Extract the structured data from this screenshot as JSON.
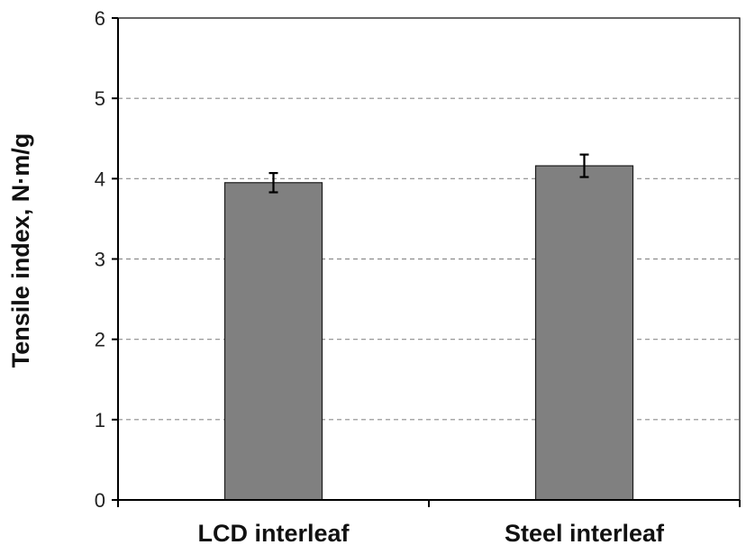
{
  "chart_data": {
    "type": "bar",
    "title": "",
    "xlabel": "",
    "ylabel": "Tensile index, N·m/g",
    "categories": [
      "LCD interleaf",
      "Steel interleaf"
    ],
    "values": [
      3.95,
      4.16
    ],
    "errors": [
      0.12,
      0.14
    ],
    "ylim": [
      0,
      6
    ],
    "yticks": [
      0,
      1,
      2,
      3,
      4,
      5,
      6
    ],
    "grid": true,
    "legend": "none",
    "colors": {
      "bar_fill": "#808080",
      "bar_stroke": "#1a1a1a",
      "axis": "#000000",
      "grid": "#8c8c8c"
    }
  }
}
